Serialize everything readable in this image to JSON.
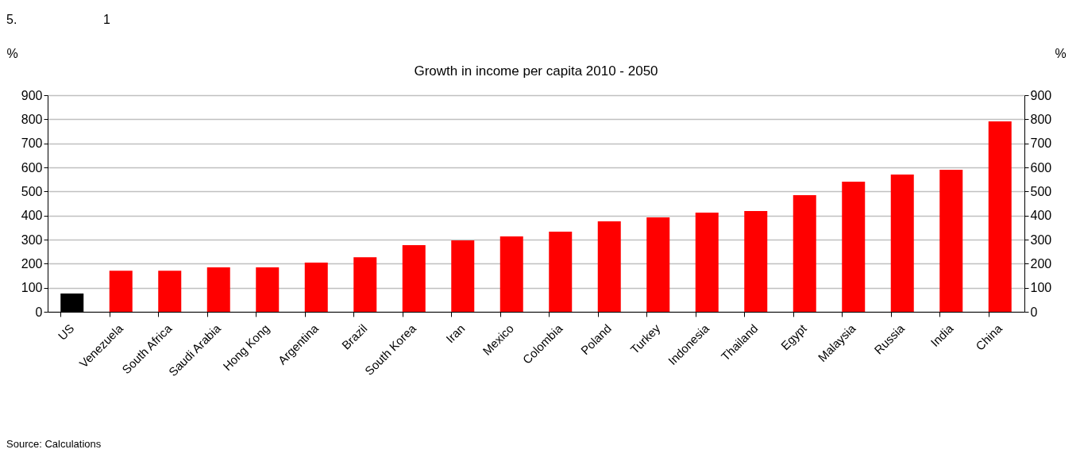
{
  "chart_data": {
    "type": "bar",
    "title": "Growth in income per capita 2010 - 2050",
    "ylabel": "%",
    "y2label": "%",
    "categories": [
      "US",
      "Venezuela",
      "South Africa",
      "Saudi Arabia",
      "Hong Kong",
      "Argentina",
      "Brazil",
      "South Korea",
      "Iran",
      "Mexico",
      "Colombia",
      "Poland",
      "Turkey",
      "Indonesia",
      "Thailand",
      "Egypt",
      "Malaysia",
      "Russia",
      "India",
      "China"
    ],
    "values": [
      76,
      171,
      171,
      185,
      185,
      204,
      227,
      277,
      297,
      313,
      333,
      376,
      392,
      412,
      419,
      485,
      541,
      570,
      590,
      791
    ],
    "colors": [
      "#000000",
      "#ff0000",
      "#ff0000",
      "#ff0000",
      "#ff0000",
      "#ff0000",
      "#ff0000",
      "#ff0000",
      "#ff0000",
      "#ff0000",
      "#ff0000",
      "#ff0000",
      "#ff0000",
      "#ff0000",
      "#ff0000",
      "#ff0000",
      "#ff0000",
      "#ff0000",
      "#ff0000",
      "#ff0000"
    ],
    "ylim": [
      0,
      900
    ],
    "yticks": [
      0,
      100,
      200,
      300,
      400,
      500,
      600,
      700,
      800,
      900
    ],
    "y2lim": [
      0,
      900
    ],
    "y2ticks": [
      0,
      100,
      200,
      300,
      400,
      500,
      600,
      700,
      800,
      900
    ],
    "grid": "y",
    "annotations": [
      "5.",
      "1",
      "Source: Calculations"
    ]
  }
}
